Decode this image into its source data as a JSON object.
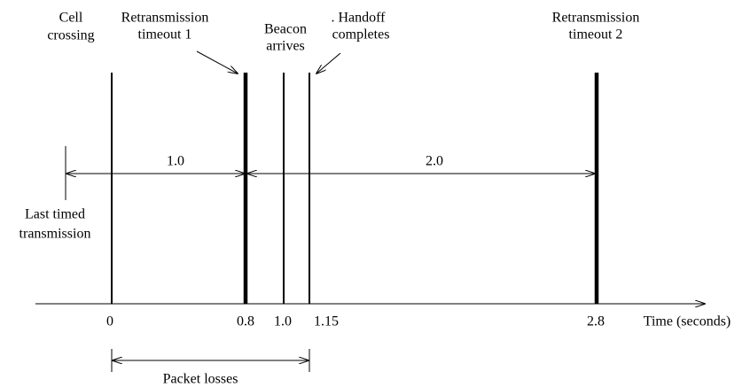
{
  "events": [
    {
      "label": [
        "Cell",
        "crossing"
      ]
    },
    {
      "label": [
        "Retransmission",
        "timeout  1"
      ]
    },
    {
      "label": [
        "Beacon",
        "arrives"
      ]
    },
    {
      "label": [
        ". Handoff",
        "completes"
      ]
    },
    {
      "label": [
        "Retransmission",
        "timeout  2"
      ]
    }
  ],
  "last_transmission": [
    "Last  timed",
    "transmission"
  ],
  "intervals": [
    "1.0",
    "2.0"
  ],
  "axis": {
    "ticks": [
      "0",
      "0.8",
      "1.0",
      "1.15",
      "2.8"
    ],
    "label": "Time (seconds)"
  },
  "packet_losses": "Packet losses"
}
